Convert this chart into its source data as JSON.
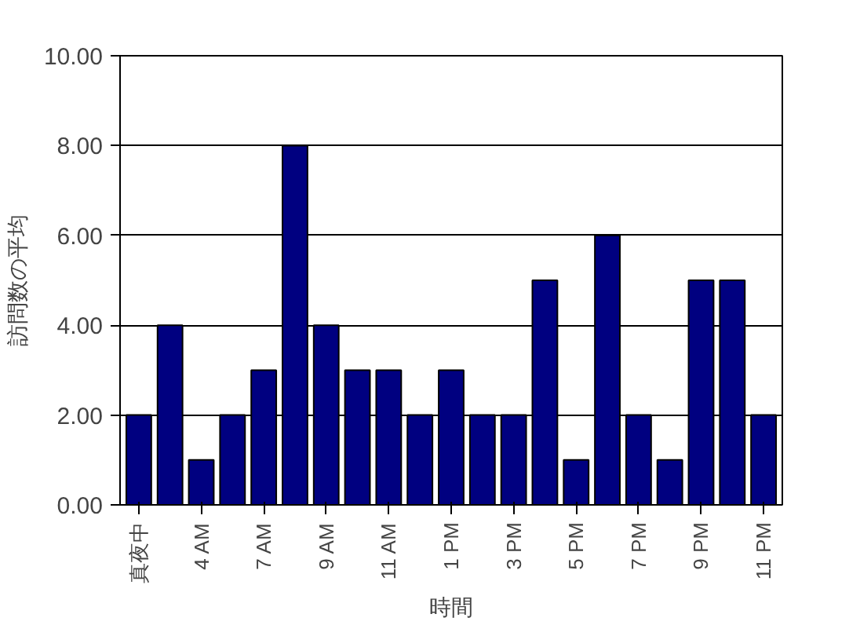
{
  "chart_data": {
    "type": "bar",
    "xlabel": "時間",
    "ylabel": "訪問数の平均",
    "categories": [
      "真夜中",
      null,
      "4 AM",
      null,
      "7 AM",
      null,
      "9 AM",
      null,
      "11 AM",
      null,
      "1 PM",
      null,
      "3 PM",
      null,
      "5 PM",
      null,
      "7 PM",
      null,
      "9 PM",
      null,
      "11 PM"
    ],
    "values": [
      2,
      4,
      1,
      2,
      3,
      8,
      4,
      3,
      3,
      2,
      3,
      2,
      2,
      5,
      1,
      6,
      2,
      1,
      5,
      5,
      2
    ],
    "color": "#000080",
    "ylim": [
      0,
      10
    ],
    "yticks": [
      {
        "value": 0,
        "label": "0.00"
      },
      {
        "value": 2,
        "label": "2.00"
      },
      {
        "value": 4,
        "label": "4.00"
      },
      {
        "value": 6,
        "label": "6.00"
      },
      {
        "value": 8,
        "label": "8.00"
      },
      {
        "value": 10,
        "label": "10.00"
      }
    ],
    "grid": "y"
  }
}
